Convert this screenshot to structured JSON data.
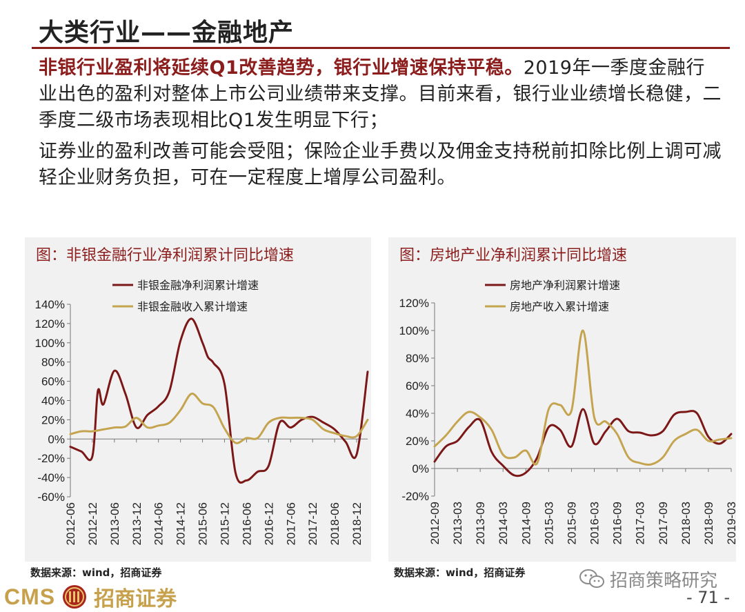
{
  "slide": {
    "title": "大类行业——金融地产",
    "para1_highlight": "非银行业盈利将延续Q1改善趋势，银行业增速保持平稳。",
    "para1_text": "2019年一季度金融行业出色的盈利对整体上市公司业绩带来支撑。目前来看，银行业业绩增长稳健，二季度二级市场表现相比Q1发生明显下行；",
    "para2_text": "证券业的盈利改善可能会受阻；保险企业手费以及佣金支持税前扣除比例上调可减轻企业财务负担，可在一定程度上增厚公司盈利。"
  },
  "colors": {
    "accent": "#8c1d1d",
    "series_profit": "#7b1717",
    "series_revenue": "#c4a44f",
    "panel_bg": "#f1f1f1",
    "gold": "#c6a04a"
  },
  "chart_data": [
    {
      "type": "line",
      "title": "图：非银金融行业净利润累计同比增速",
      "xlabel": "",
      "ylabel": "",
      "ylim": [
        -60,
        140
      ],
      "yticks": [
        -60,
        -40,
        -20,
        0,
        20,
        40,
        60,
        80,
        100,
        120,
        140
      ],
      "ytick_labels": [
        "-60%",
        "-40%",
        "-20%",
        "0%",
        "20%",
        "40%",
        "60%",
        "80%",
        "100%",
        "120%",
        "140%"
      ],
      "xlim": [
        0,
        27
      ],
      "xtick_labels": [
        "2012-06",
        "2012-12",
        "2013-06",
        "2013-12",
        "2014-06",
        "2014-12",
        "2015-06",
        "2015-12",
        "2016-06",
        "2016-12",
        "2017-06",
        "2017-12",
        "2018-06",
        "2018-12"
      ],
      "xtick_positions": [
        0,
        2,
        4,
        6,
        8,
        10,
        12,
        14,
        16,
        18,
        20,
        22,
        24,
        26
      ],
      "legend": "top-left",
      "series": [
        {
          "name": "非银金融净利润累计增速",
          "color": "#7b1717",
          "x": [
            0,
            1,
            2,
            2.5,
            3,
            4,
            5,
            6,
            7,
            8,
            9,
            10,
            11,
            12,
            12.5,
            13,
            14,
            15,
            16,
            17,
            18,
            19,
            20,
            21,
            22,
            23,
            24,
            25,
            26,
            27
          ],
          "values": [
            -8,
            -13,
            -18,
            50,
            36,
            71,
            47,
            12,
            25,
            34,
            50,
            102,
            125,
            100,
            85,
            79,
            57,
            -35,
            -43,
            -34,
            -28,
            17,
            12,
            20,
            23,
            17,
            10,
            -3,
            -16,
            70
          ]
        },
        {
          "name": "非银金融收入累计增速",
          "color": "#c4a44f",
          "x": [
            0,
            1,
            2,
            3,
            4,
            5,
            6,
            7,
            8,
            9,
            10,
            11,
            12,
            13,
            14,
            15,
            16,
            17,
            18,
            19,
            20,
            21,
            22,
            23,
            24,
            25,
            26,
            27
          ],
          "values": [
            5,
            8,
            8,
            10,
            12,
            13,
            22,
            12,
            14,
            17,
            30,
            47,
            37,
            33,
            11,
            -4,
            1,
            1,
            17,
            22,
            22,
            22,
            20,
            10,
            6,
            3,
            3,
            20
          ]
        }
      ]
    },
    {
      "type": "line",
      "title": "图：房地产业净利润累计同比增速",
      "xlabel": "",
      "ylabel": "",
      "ylim": [
        -20,
        120
      ],
      "yticks": [
        -20,
        0,
        20,
        40,
        60,
        80,
        100,
        120
      ],
      "ytick_labels": [
        "-20%",
        "0%",
        "20%",
        "40%",
        "60%",
        "80%",
        "100%",
        "120%"
      ],
      "xlim": [
        0,
        26
      ],
      "xtick_labels": [
        "2012-09",
        "2013-03",
        "2013-09",
        "2014-03",
        "2014-09",
        "2015-03",
        "2015-09",
        "2016-03",
        "2016-09",
        "2017-03",
        "2017-09",
        "2018-03",
        "2018-09",
        "2019-03"
      ],
      "xtick_positions": [
        0,
        2,
        4,
        6,
        8,
        10,
        12,
        14,
        16,
        18,
        20,
        22,
        24,
        26
      ],
      "legend": "top-left",
      "series": [
        {
          "name": "房地产净利润累计增速",
          "color": "#7b1717",
          "x": [
            0,
            1,
            2,
            3,
            4,
            5,
            6,
            7,
            8,
            9,
            10,
            11,
            12,
            13,
            14,
            15,
            16,
            17,
            18,
            19,
            20,
            21,
            22,
            23,
            24,
            25,
            26
          ],
          "values": [
            5,
            16,
            20,
            30,
            35,
            12,
            2,
            -5,
            -3,
            8,
            30,
            28,
            16,
            43,
            18,
            27,
            36,
            27,
            26,
            24,
            27,
            39,
            41,
            40,
            23,
            18,
            25
          ]
        },
        {
          "name": "房地产收入累计增速",
          "color": "#c4a44f",
          "x": [
            0,
            1,
            2,
            3,
            4,
            5,
            6,
            7,
            8,
            9,
            10,
            11,
            12,
            13,
            14,
            15,
            16,
            17,
            18,
            19,
            20,
            21,
            22,
            23,
            24,
            25,
            26
          ],
          "values": [
            16,
            24,
            34,
            41,
            37,
            28,
            10,
            8,
            13,
            4,
            43,
            46,
            42,
            100,
            37,
            34,
            25,
            8,
            4,
            3,
            8,
            20,
            25,
            28,
            20,
            21,
            22
          ]
        }
      ]
    }
  ],
  "sources": {
    "left": "数据来源：wind，招商证券",
    "right": "数据来源：wind，招商证券"
  },
  "footer": {
    "watermark_text": "招商策略研究",
    "brand_short": "CMS",
    "brand_name": "招商证券",
    "page_number": "- 71 -"
  },
  "icons": {
    "wechat": "wechat-icon",
    "emblem": "cms-emblem-icon"
  }
}
